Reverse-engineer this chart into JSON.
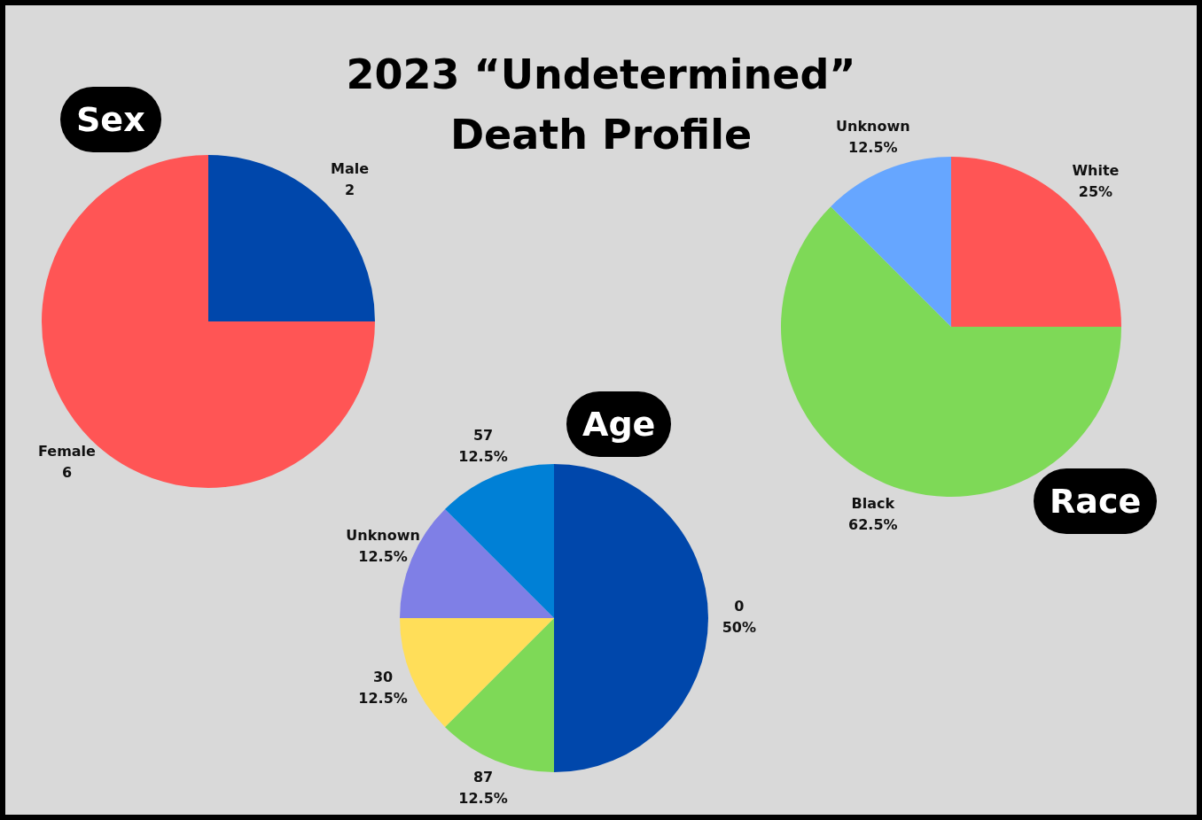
{
  "chart_data": [
    {
      "type": "other",
      "title": "2023 “Undetermined” Death Profile"
    },
    {
      "type": "pie",
      "title": "Sex",
      "categories": [
        "Male",
        "Female"
      ],
      "values": [
        2,
        6
      ],
      "colors": [
        "#0047ab",
        "#ff5555"
      ],
      "data_labels": true
    },
    {
      "type": "pie",
      "title": "Race",
      "categories": [
        "White",
        "Black",
        "Unknown"
      ],
      "values": [
        25,
        62.5,
        12.5
      ],
      "colors": [
        "#ff5555",
        "#7ed957",
        "#66a6ff"
      ],
      "value_labels": [
        "25%",
        "62.5%",
        "12.5%"
      ]
    },
    {
      "type": "pie",
      "title": "Age",
      "categories": [
        "0",
        "87",
        "30",
        "Unknown",
        "57"
      ],
      "values": [
        50,
        12.5,
        12.5,
        12.5,
        12.5
      ],
      "colors": [
        "#0047ab",
        "#7ed957",
        "#ffde59",
        "#7f7fe6",
        "#0080d6"
      ],
      "value_labels": [
        "50%",
        "12.5%",
        "12.5%",
        "12.5%",
        "12.5%"
      ]
    }
  ]
}
